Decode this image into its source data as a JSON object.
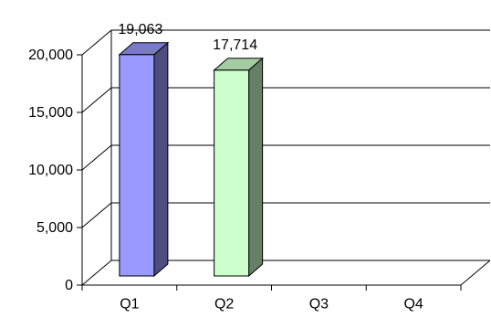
{
  "chart_data": {
    "type": "bar",
    "categories": [
      "Q1",
      "Q2",
      "Q3",
      "Q4"
    ],
    "values": [
      19063,
      17714,
      null,
      null
    ],
    "data_labels": [
      "19,063",
      "17,714",
      "",
      ""
    ],
    "ylim": [
      0,
      20000
    ],
    "y_ticks": [
      0,
      5000,
      10000,
      15000,
      20000
    ],
    "y_tick_labels": [
      "0",
      "5,000",
      "10,000",
      "15,000",
      "20,000"
    ],
    "grid": true,
    "style": "3d",
    "bar_colors": [
      {
        "front": "#9999ff",
        "side": "#4d4d80",
        "top": "#7a7acc"
      },
      {
        "front": "#ccffcc",
        "side": "#668066",
        "top": "#a3cca3"
      }
    ],
    "axis_color": "#000000",
    "grid_color": "#000000"
  }
}
